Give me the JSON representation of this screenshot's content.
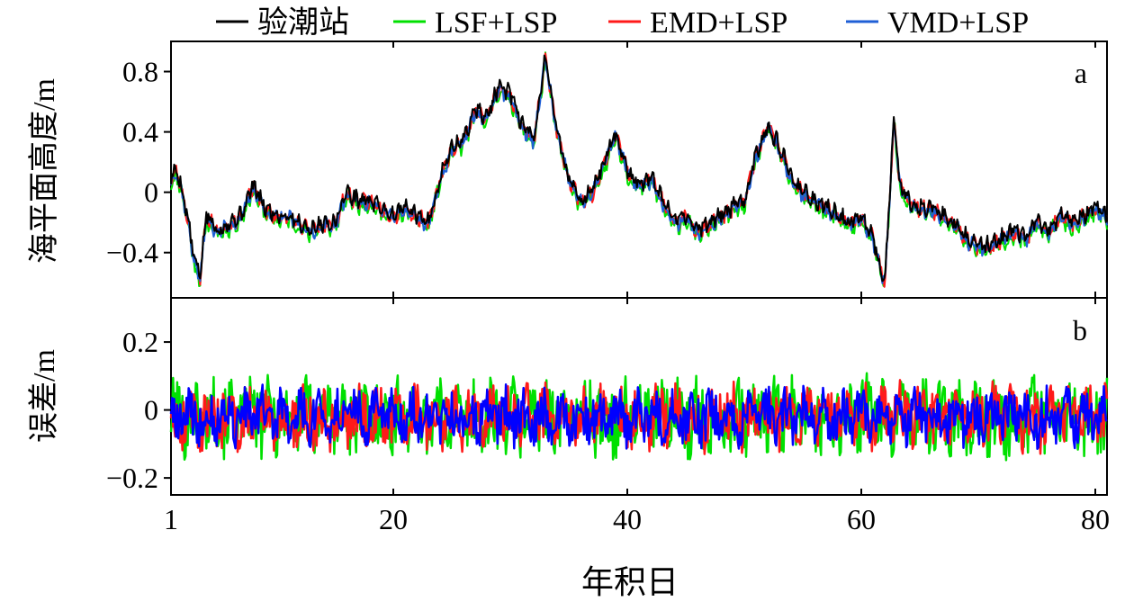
{
  "chart_data": {
    "type": "line",
    "legend": {
      "placement": "top",
      "entries": [
        {
          "name": "验潮站",
          "color": "#000000"
        },
        {
          "name": "LSF+LSP",
          "color": "#00e000"
        },
        {
          "name": "EMD+LSP",
          "color": "#ff1a1a"
        },
        {
          "name": "VMD+LSP",
          "color": "#1f5fd6"
        }
      ]
    },
    "xlabel": "年积日",
    "xlim": [
      1,
      81
    ],
    "xticks": [
      1,
      20,
      40,
      60,
      80
    ],
    "panels": [
      {
        "id": "a",
        "panel_label": "a",
        "ylabel": "海平面高度/m",
        "ylim": [
          -0.7,
          1.0
        ],
        "yticks": [
          0.8,
          0.4,
          0,
          -0.4
        ],
        "ytick_labels": [
          "0.8",
          "0.4",
          "0",
          "−0.4"
        ],
        "series": [
          {
            "name": "验潮站",
            "color": "#000000",
            "x": [
              1,
              1.5,
              2,
              2.5,
              3,
              3.5,
              4,
              5,
              6,
              7,
              8,
              9,
              10,
              11,
              12,
              13,
              14,
              15,
              16,
              17,
              18,
              19,
              20,
              21,
              22,
              23,
              24,
              25,
              26,
              27,
              28,
              29,
              30,
              31,
              32,
              33,
              34,
              35,
              36,
              37,
              38,
              39,
              40,
              41,
              42,
              43,
              44,
              45,
              46,
              47,
              48,
              49,
              50,
              51,
              52,
              53,
              54,
              55,
              56,
              57,
              58,
              59,
              60,
              61,
              62,
              62.8,
              63.3,
              64,
              65,
              66,
              67,
              68,
              69,
              70,
              71,
              72,
              73,
              74,
              75,
              76,
              77,
              78,
              79,
              80,
              81
            ],
            "y": [
              0.1,
              0.15,
              0.0,
              -0.2,
              -0.45,
              -0.55,
              -0.15,
              -0.25,
              -0.2,
              -0.15,
              0.05,
              -0.1,
              -0.15,
              -0.15,
              -0.2,
              -0.25,
              -0.2,
              -0.2,
              0.0,
              -0.05,
              -0.05,
              -0.1,
              -0.15,
              -0.1,
              -0.15,
              -0.2,
              0.1,
              0.3,
              0.35,
              0.55,
              0.5,
              0.7,
              0.65,
              0.45,
              0.35,
              0.9,
              0.4,
              0.1,
              -0.05,
              0.0,
              0.2,
              0.4,
              0.15,
              0.05,
              0.1,
              -0.05,
              -0.2,
              -0.15,
              -0.25,
              -0.2,
              -0.15,
              -0.1,
              -0.05,
              0.25,
              0.45,
              0.3,
              0.1,
              0.0,
              -0.05,
              -0.1,
              -0.15,
              -0.2,
              -0.15,
              -0.3,
              -0.6,
              0.5,
              0.05,
              -0.05,
              -0.1,
              -0.1,
              -0.15,
              -0.2,
              -0.3,
              -0.35,
              -0.35,
              -0.3,
              -0.25,
              -0.3,
              -0.2,
              -0.25,
              -0.15,
              -0.2,
              -0.15,
              -0.1,
              -0.15
            ]
          }
        ]
      },
      {
        "id": "b",
        "panel_label": "b",
        "ylabel": "误差/m",
        "ylim": [
          -0.25,
          0.33
        ],
        "yticks": [
          0.2,
          0,
          -0.2
        ],
        "ytick_labels": [
          "0.2",
          "0",
          "−0.2"
        ],
        "series": [
          {
            "name": "LSF+LSP",
            "color": "#00e000",
            "amplitude": 0.1
          },
          {
            "name": "EMD+LSP",
            "color": "#ff1a1a",
            "amplitude": 0.08
          },
          {
            "name": "VMD+LSP",
            "color": "#0000ff",
            "amplitude": 0.065
          }
        ]
      }
    ]
  }
}
